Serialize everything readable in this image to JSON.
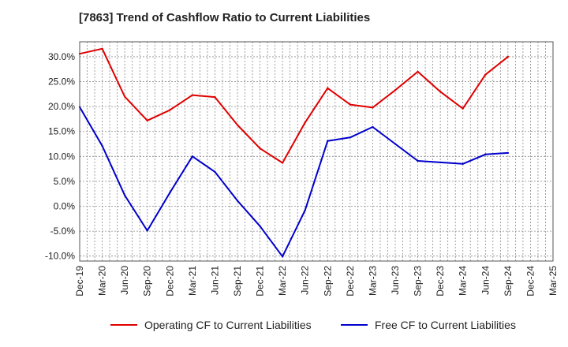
{
  "chart_data": {
    "type": "line",
    "title": "[7863]  Trend of Cashflow Ratio to Current Liabilities",
    "xlabel": "",
    "ylabel": "",
    "x": [
      "Dec-19",
      "Mar-20",
      "Jun-20",
      "Sep-20",
      "Dec-20",
      "Mar-21",
      "Jun-21",
      "Sep-21",
      "Dec-21",
      "Mar-22",
      "Jun-22",
      "Sep-22",
      "Dec-22",
      "Mar-23",
      "Jun-23",
      "Sep-23",
      "Dec-23",
      "Mar-24",
      "Jun-24",
      "Sep-24",
      "Dec-24",
      "Mar-25"
    ],
    "ylim": [
      -11,
      33
    ],
    "yticks": [
      -10,
      -5,
      0,
      5,
      10,
      15,
      20,
      25,
      30
    ],
    "ytick_labels": [
      "-10.0%",
      "-5.0%",
      "0.0%",
      "5.0%",
      "10.0%",
      "15.0%",
      "20.0%",
      "25.0%",
      "30.0%"
    ],
    "grid": true,
    "legend_position": "bottom",
    "series": [
      {
        "name": "Operating CF to Current Liabilities",
        "color": "#e00000",
        "values": [
          30.6,
          31.6,
          22.0,
          17.2,
          19.3,
          22.3,
          21.9,
          16.3,
          11.6,
          8.7,
          16.8,
          23.7,
          20.4,
          19.8,
          23.3,
          27.0,
          23.0,
          19.6,
          26.4,
          30.0,
          null,
          null
        ]
      },
      {
        "name": "Free CF to Current Liabilities",
        "color": "#0000cc",
        "values": [
          19.9,
          12.1,
          2.2,
          -4.9,
          2.7,
          10.0,
          6.9,
          1.1,
          -4.0,
          -10.1,
          -0.8,
          13.1,
          13.8,
          15.9,
          12.5,
          9.1,
          8.8,
          8.5,
          10.4,
          10.7,
          null,
          null
        ]
      }
    ]
  }
}
